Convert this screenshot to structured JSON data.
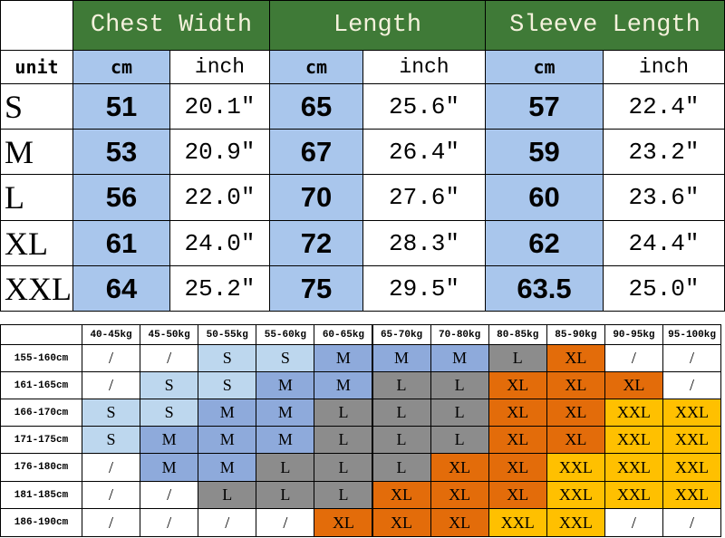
{
  "size_table": {
    "headers": [
      "Chest Width",
      "Length",
      "Sleeve Length"
    ],
    "unit_row": [
      "unit",
      "cm",
      "inch",
      "cm",
      "inch",
      "cm",
      "inch"
    ],
    "rows": [
      [
        "S",
        51,
        "20.1\"",
        65,
        "25.6\"",
        57,
        "22.4\""
      ],
      [
        "M",
        53,
        "20.9\"",
        67,
        "26.4\"",
        59,
        "23.2\""
      ],
      [
        "L",
        56,
        "22.0\"",
        70,
        "27.6\"",
        60,
        "23.6\""
      ],
      [
        "XL",
        61,
        "24.0\"",
        72,
        "28.3\"",
        62,
        "24.4\""
      ],
      [
        "XXL",
        64,
        "25.2\"",
        75,
        "29.5\"",
        63.5,
        "25.0\""
      ]
    ]
  },
  "fit_table": {
    "weights": [
      "40-45kg",
      "45-50kg",
      "50-55kg",
      "55-60kg",
      "60-65kg",
      "65-70kg",
      "70-80kg",
      "80-85kg",
      "85-90kg",
      "90-95kg",
      "95-100kg"
    ],
    "rows": [
      {
        "height": "155-160cm",
        "sizes": [
          "/",
          "/",
          "S",
          "S",
          "M",
          "M",
          "M",
          "L",
          "XL",
          "/",
          "/"
        ]
      },
      {
        "height": "161-165cm",
        "sizes": [
          "/",
          "S",
          "S",
          "M",
          "M",
          "L",
          "L",
          "XL",
          "XL",
          "XL",
          "/"
        ]
      },
      {
        "height": "166-170cm",
        "sizes": [
          "S",
          "S",
          "M",
          "M",
          "L",
          "L",
          "L",
          "XL",
          "XL",
          "XXL",
          "XXL"
        ]
      },
      {
        "height": "171-175cm",
        "sizes": [
          "S",
          "M",
          "M",
          "M",
          "L",
          "L",
          "L",
          "XL",
          "XL",
          "XXL",
          "XXL"
        ]
      },
      {
        "height": "176-180cm",
        "sizes": [
          "/",
          "M",
          "M",
          "L",
          "L",
          "L",
          "XL",
          "XL",
          "XXL",
          "XXL",
          "XXL"
        ]
      },
      {
        "height": "181-185cm",
        "sizes": [
          "/",
          "/",
          "L",
          "L",
          "L",
          "XL",
          "XL",
          "XL",
          "XXL",
          "XXL",
          "XXL"
        ]
      },
      {
        "height": "186-190cm",
        "sizes": [
          "/",
          "/",
          "/",
          "/",
          "XL",
          "XL",
          "XL",
          "XXL",
          "XXL",
          "/",
          "/"
        ]
      }
    ],
    "colors": {
      "/": "#ffffff",
      "S": "#bdd7ee",
      "M": "#8eaadb",
      "L": "#8c8c8c",
      "XL": "#e36c0a",
      "XXL": "#ffc000"
    }
  }
}
